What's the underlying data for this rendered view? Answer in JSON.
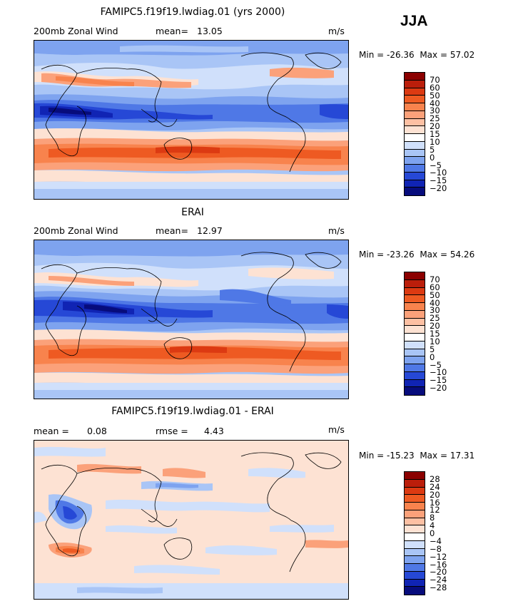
{
  "season": "JJA",
  "panels": [
    {
      "title": "FAMIPC5.f19f19.lwdiag.01 (yrs 2000)",
      "left_label": "200mb Zonal Wind",
      "stat1_label": "mean=",
      "stat1_value": "13.05",
      "units": "m/s",
      "min_label": "Min =",
      "min_value": "-26.36",
      "max_label": "Max =",
      "max_value": "57.02",
      "levels": [
        "70",
        "60",
        "50",
        "40",
        "30",
        "25",
        "20",
        "15",
        "10",
        "5",
        "0",
        "−5",
        "−10",
        "−15",
        "−20"
      ],
      "colors": [
        "#8b0000",
        "#bb1e0b",
        "#dc3a12",
        "#ee5a22",
        "#f8834d",
        "#fba17a",
        "#fdc0a3",
        "#fde2d3",
        "#ffffff",
        "#d0e0fb",
        "#a9c5f6",
        "#7ea3ef",
        "#4f78e6",
        "#2648d6",
        "#1024b4",
        "#070c7c"
      ]
    },
    {
      "title": "ERAI",
      "left_label": "200mb Zonal Wind",
      "stat1_label": "mean=",
      "stat1_value": "12.97",
      "units": "m/s",
      "min_label": "Min =",
      "min_value": "-23.26",
      "max_label": "Max =",
      "max_value": "54.26",
      "levels": [
        "70",
        "60",
        "50",
        "40",
        "30",
        "25",
        "20",
        "15",
        "10",
        "5",
        "0",
        "−5",
        "−10",
        "−15",
        "−20"
      ],
      "colors": [
        "#8b0000",
        "#bb1e0b",
        "#dc3a12",
        "#ee5a22",
        "#f8834d",
        "#fba17a",
        "#fdc0a3",
        "#fde2d3",
        "#ffffff",
        "#d0e0fb",
        "#a9c5f6",
        "#7ea3ef",
        "#4f78e6",
        "#2648d6",
        "#1024b4",
        "#070c7c"
      ]
    },
    {
      "title": "FAMIPC5.f19f19.lwdiag.01 - ERAI",
      "left_label": "mean =",
      "left_value": "0.08",
      "stat1_label": "rmse =",
      "stat1_value": "4.43",
      "units": "m/s",
      "min_label": "Min =",
      "min_value": "-15.23",
      "max_label": "Max =",
      "max_value": "17.31",
      "levels": [
        "28",
        "24",
        "20",
        "16",
        "12",
        "8",
        "4",
        "0",
        "−4",
        "−8",
        "−12",
        "−16",
        "−20",
        "−24",
        "−28"
      ],
      "colors": [
        "#8b0000",
        "#bb1e0b",
        "#dc3a12",
        "#ee5a22",
        "#f8834d",
        "#fba17a",
        "#fdc0a3",
        "#fde2d3",
        "#ffffff",
        "#d0e0fb",
        "#a9c5f6",
        "#7ea3ef",
        "#4f78e6",
        "#2648d6",
        "#1024b4",
        "#070c7c"
      ]
    }
  ]
}
